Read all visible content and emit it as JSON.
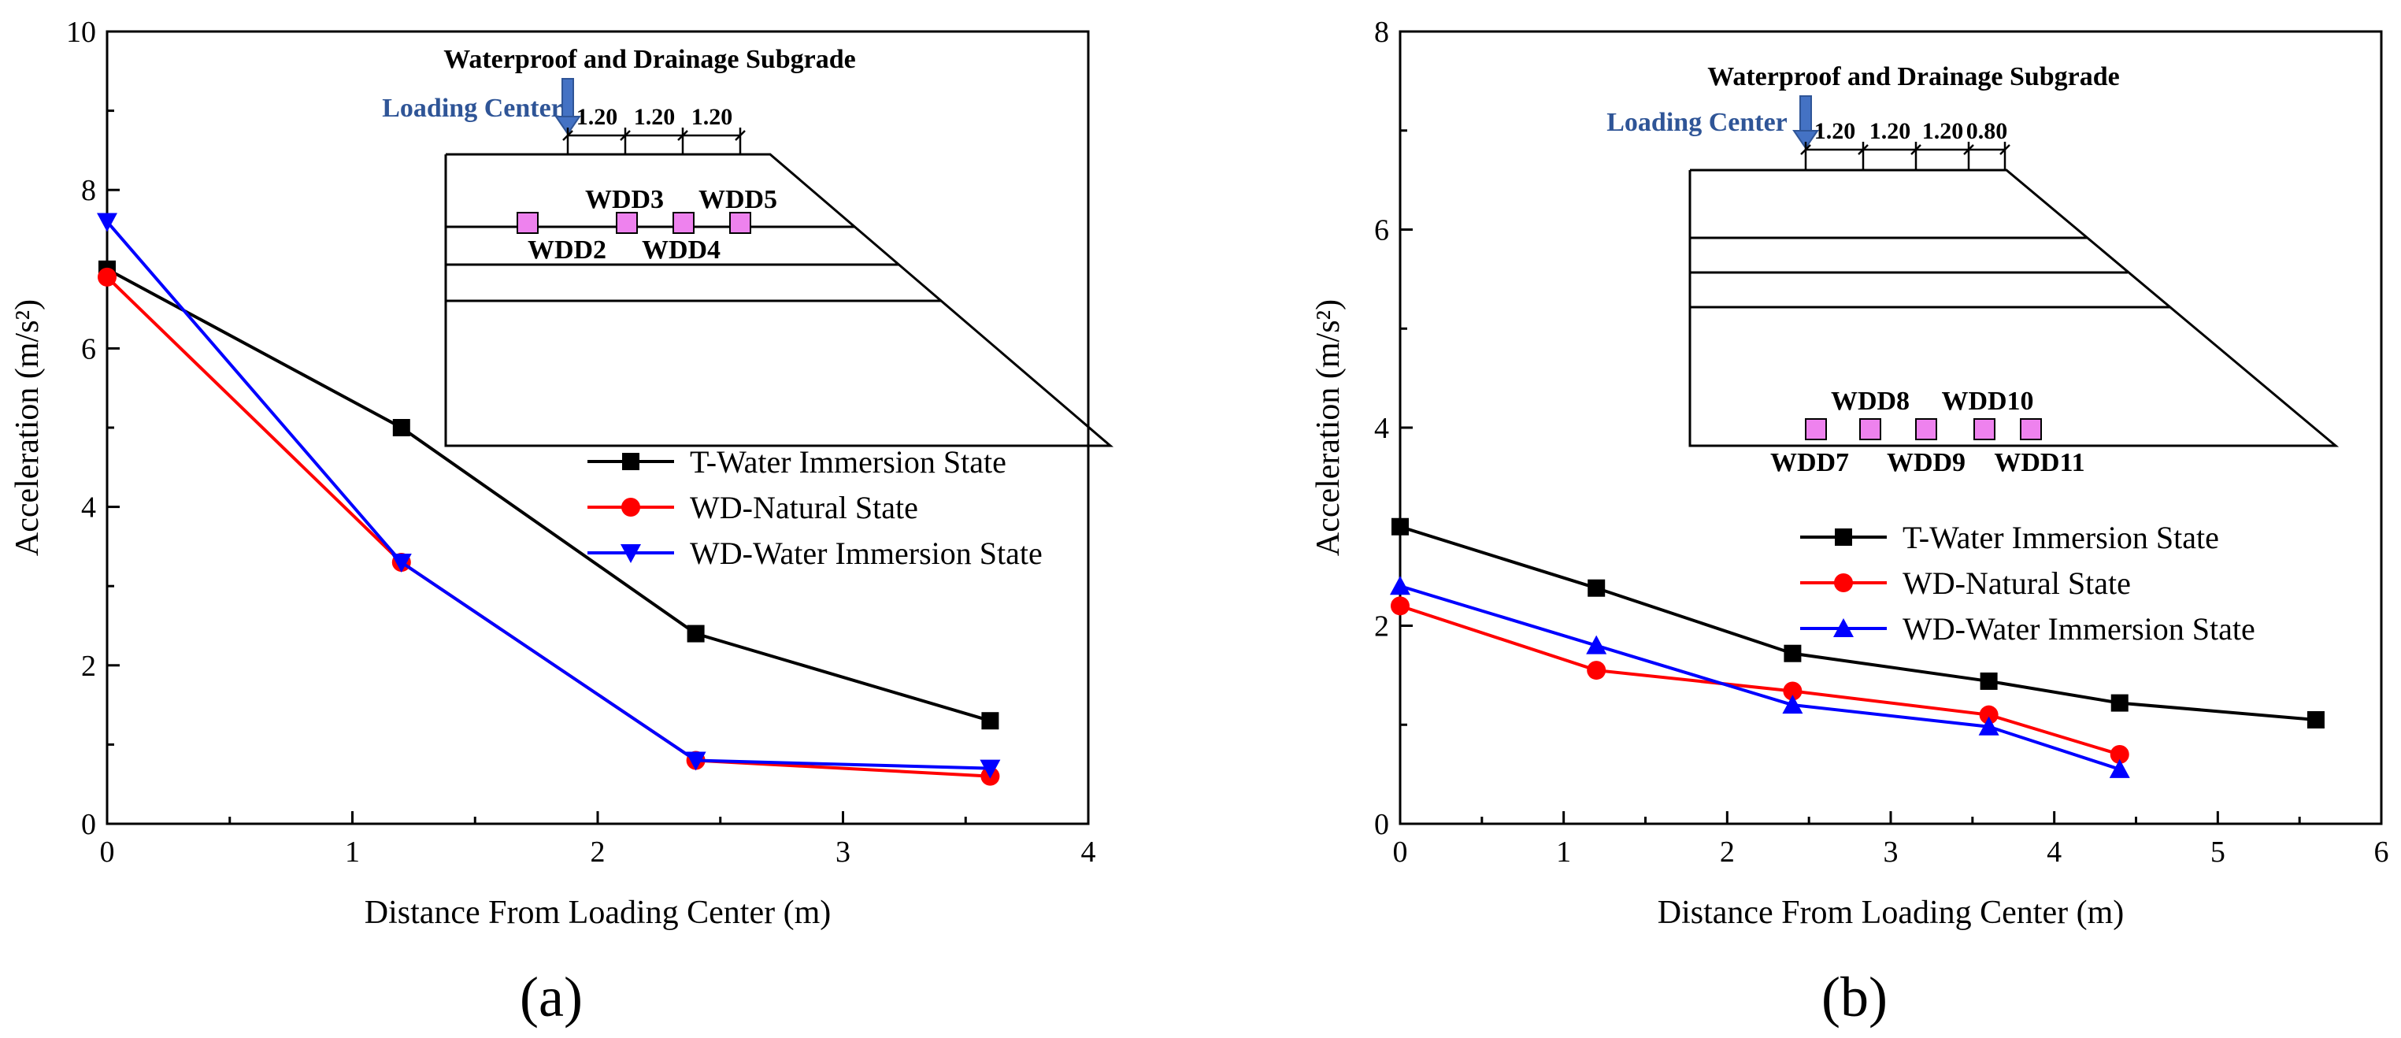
{
  "panels": [
    {
      "label": "(a)",
      "xlabel": "Distance From Loading Center (m)",
      "ylabel": "Acceleration (m/s²)",
      "inset": {
        "title": "Waterproof and Drainage Subgrade",
        "loading_label": "Loading Center",
        "spacings": [
          "1.20",
          "1.20",
          "1.20"
        ],
        "gauges": [
          "WDD2",
          "WDD3",
          "WDD4",
          "WDD5"
        ]
      }
    },
    {
      "label": "(b)",
      "xlabel": "Distance From Loading Center (m)",
      "ylabel": "Acceleration (m/s²)",
      "inset": {
        "title": "Waterproof and Drainage Subgrade",
        "loading_label": "Loading Center",
        "spacings": [
          "1.20",
          "1.20",
          "1.20",
          "0.80"
        ],
        "gauges": [
          "WDD7",
          "WDD8",
          "WDD9",
          "WDD10",
          "WDD11"
        ]
      }
    }
  ],
  "chart_data": [
    {
      "type": "line",
      "xlabel": "Distance From Loading Center (m)",
      "ylabel": "Acceleration (m/s²)",
      "xlim": [
        0,
        4
      ],
      "ylim": [
        0,
        10
      ],
      "xticks": [
        0,
        1,
        2,
        3,
        4
      ],
      "yticks": [
        0,
        2,
        4,
        6,
        8,
        10
      ],
      "legend_position": "center-right",
      "grid": false,
      "series": [
        {
          "name": "T-Water Immersion State",
          "color": "#000000",
          "marker": "square",
          "x": [
            0,
            1.2,
            2.4,
            3.6
          ],
          "y": [
            7.0,
            5.0,
            2.4,
            1.3
          ]
        },
        {
          "name": "WD-Natural State",
          "color": "#ff0000",
          "marker": "circle",
          "x": [
            0,
            1.2,
            2.4,
            3.6
          ],
          "y": [
            6.9,
            3.3,
            0.8,
            0.6
          ]
        },
        {
          "name": "WD-Water Immersion State",
          "color": "#0000ff",
          "marker": "triangle-down",
          "x": [
            0,
            1.2,
            2.4,
            3.6
          ],
          "y": [
            7.6,
            3.3,
            0.8,
            0.7
          ]
        }
      ]
    },
    {
      "type": "line",
      "xlabel": "Distance From Loading Center (m)",
      "ylabel": "Acceleration (m/s²)",
      "xlim": [
        0,
        6
      ],
      "ylim": [
        0,
        8
      ],
      "xticks": [
        0,
        1,
        2,
        3,
        4,
        5,
        6
      ],
      "yticks": [
        0,
        2,
        4,
        6,
        8
      ],
      "legend_position": "center-right",
      "grid": false,
      "series": [
        {
          "name": "T-Water Immersion State",
          "color": "#000000",
          "marker": "square",
          "x": [
            0,
            1.2,
            2.4,
            3.6,
            4.4,
            5.6
          ],
          "y": [
            3.0,
            2.38,
            1.72,
            1.44,
            1.22,
            1.05
          ]
        },
        {
          "name": "WD-Natural State",
          "color": "#ff0000",
          "marker": "circle",
          "x": [
            0,
            1.2,
            2.4,
            3.6,
            4.4
          ],
          "y": [
            2.2,
            1.55,
            1.34,
            1.1,
            0.7
          ]
        },
        {
          "name": "WD-Water Immersion State",
          "color": "#0000ff",
          "marker": "triangle-up",
          "x": [
            0,
            1.2,
            2.4,
            3.6,
            4.4
          ],
          "y": [
            2.4,
            1.8,
            1.2,
            0.98,
            0.55
          ]
        }
      ]
    }
  ]
}
